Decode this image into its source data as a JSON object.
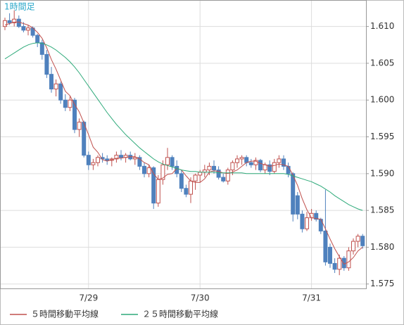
{
  "chart_data": {
    "type": "candlestick",
    "title": "1時間足",
    "categories": [
      null,
      null,
      null,
      null,
      null,
      null,
      null,
      null,
      null,
      null,
      null,
      null,
      null,
      null,
      null,
      null,
      null,
      null,
      "7/29",
      null,
      null,
      null,
      null,
      null,
      null,
      null,
      null,
      null,
      null,
      null,
      null,
      null,
      null,
      null,
      null,
      null,
      null,
      null,
      null,
      null,
      null,
      null,
      "7/30",
      null,
      null,
      null,
      null,
      null,
      null,
      null,
      null,
      null,
      null,
      null,
      null,
      null,
      null,
      null,
      null,
      null,
      null,
      null,
      null,
      null,
      null,
      null,
      "7/31",
      null,
      null,
      null,
      null,
      null,
      null,
      null,
      null,
      null,
      null,
      null
    ],
    "open": [
      1.61,
      1.6108,
      1.6105,
      1.611,
      1.61,
      1.6095,
      1.6098,
      1.6088,
      1.6078,
      1.6062,
      1.6035,
      1.6015,
      1.6022,
      1.6,
      1.599,
      1.6,
      1.596,
      1.597,
      1.5925,
      1.5912,
      1.5915,
      1.5922,
      1.592,
      1.5918,
      1.592,
      1.5925,
      1.5922,
      1.5925,
      1.592,
      1.5922,
      1.591,
      1.59,
      1.5908,
      1.586,
      1.5892,
      1.5912,
      1.5922,
      1.591,
      1.59,
      1.588,
      1.5872,
      1.589,
      1.5898,
      1.5902,
      1.5905,
      1.591,
      1.5905,
      1.5895,
      1.589,
      1.5905,
      1.5915,
      1.592,
      1.5922,
      1.5915,
      1.5912,
      1.5918,
      1.5905,
      1.5912,
      1.5903,
      1.5915,
      1.592,
      1.591,
      1.59,
      1.587,
      1.5845,
      1.5825,
      1.584,
      1.5846,
      1.5838,
      1.5822,
      1.58,
      1.5778,
      1.577,
      1.5785,
      1.5772,
      1.5795,
      1.5808,
      1.5815
    ],
    "high": [
      1.6112,
      1.6118,
      1.6122,
      1.6115,
      1.6106,
      1.6102,
      1.61,
      1.609,
      1.6082,
      1.6068,
      1.6045,
      1.6028,
      1.6025,
      1.6008,
      1.6005,
      1.6003,
      1.5975,
      1.5972,
      1.593,
      1.592,
      1.5925,
      1.5928,
      1.5925,
      1.5922,
      1.593,
      1.5932,
      1.5928,
      1.593,
      1.5928,
      1.5925,
      1.5915,
      1.5912,
      1.591,
      1.5898,
      1.5918,
      1.5935,
      1.5925,
      1.5918,
      1.5905,
      1.5885,
      1.5895,
      1.59,
      1.5905,
      1.5912,
      1.5915,
      1.5918,
      1.591,
      1.59,
      1.5908,
      1.5918,
      1.5925,
      1.5925,
      1.5925,
      1.592,
      1.5922,
      1.592,
      1.5915,
      1.5918,
      1.592,
      1.5925,
      1.5925,
      1.5915,
      1.5902,
      1.5875,
      1.585,
      1.5848,
      1.5852,
      1.585,
      1.584,
      1.5878,
      1.5805,
      1.5785,
      1.579,
      1.5788,
      1.58,
      1.5812,
      1.5818,
      1.5818
    ],
    "low": [
      1.6095,
      1.6102,
      1.61,
      1.6098,
      1.6092,
      1.6088,
      1.6085,
      1.6072,
      1.6055,
      1.603,
      1.601,
      1.6005,
      1.5995,
      1.5985,
      1.5985,
      1.5955,
      1.595,
      1.5922,
      1.5905,
      1.5905,
      1.591,
      1.5915,
      1.5912,
      1.591,
      1.5915,
      1.5918,
      1.5915,
      1.5918,
      1.5912,
      1.5905,
      1.5895,
      1.5895,
      1.5852,
      1.5855,
      1.5885,
      1.5905,
      1.5905,
      1.5895,
      1.5875,
      1.5868,
      1.586,
      1.5878,
      1.5888,
      1.5895,
      1.5898,
      1.59,
      1.5892,
      1.5888,
      1.5885,
      1.5898,
      1.5908,
      1.5912,
      1.591,
      1.5908,
      1.5905,
      1.5902,
      1.59,
      1.5898,
      1.59,
      1.5908,
      1.5905,
      1.5895,
      1.5835,
      1.5838,
      1.582,
      1.5822,
      1.5836,
      1.5835,
      1.5818,
      1.5775,
      1.5772,
      1.5765,
      1.5762,
      1.5768,
      1.5768,
      1.579,
      1.58,
      1.5798
    ],
    "close": [
      1.6108,
      1.6105,
      1.611,
      1.61,
      1.6095,
      1.6098,
      1.6088,
      1.6078,
      1.6062,
      1.6035,
      1.6015,
      1.6022,
      1.6,
      1.599,
      1.6,
      1.596,
      1.597,
      1.5925,
      1.5912,
      1.5915,
      1.5922,
      1.592,
      1.5918,
      1.592,
      1.5925,
      1.5922,
      1.5925,
      1.592,
      1.5922,
      1.591,
      1.59,
      1.5908,
      1.586,
      1.5892,
      1.5912,
      1.5922,
      1.591,
      1.59,
      1.588,
      1.5872,
      1.589,
      1.5898,
      1.5902,
      1.5905,
      1.591,
      1.5905,
      1.5895,
      1.589,
      1.5905,
      1.5915,
      1.592,
      1.5922,
      1.5915,
      1.5912,
      1.5918,
      1.5905,
      1.5912,
      1.5903,
      1.5915,
      1.592,
      1.591,
      1.59,
      1.5845,
      1.5845,
      1.5825,
      1.584,
      1.5846,
      1.5838,
      1.5822,
      1.578,
      1.5778,
      1.577,
      1.5785,
      1.5772,
      1.5795,
      1.5808,
      1.5815,
      1.5802
    ],
    "up_color": "#c0504d",
    "down_color": "#4f81bd",
    "series": [
      {
        "name": "５時間移動平均線",
        "color": "#c0504d",
        "values": [
          1.6102,
          1.6104,
          1.6106,
          1.6106,
          1.6104,
          1.6102,
          1.6098,
          1.6092,
          1.6084,
          1.6071,
          1.6055,
          1.6042,
          1.6027,
          1.6012,
          1.6006,
          1.5994,
          1.5984,
          1.5969,
          1.5953,
          1.5936,
          1.5929,
          1.5919,
          1.5917,
          1.5919,
          1.5921,
          1.5921,
          1.5922,
          1.5923,
          1.5923,
          1.592,
          1.5915,
          1.5912,
          1.59,
          1.5892,
          1.5894,
          1.5899,
          1.59,
          1.5907,
          1.5905,
          1.5897,
          1.589,
          1.5888,
          1.5888,
          1.5893,
          1.5902,
          1.5904,
          1.5903,
          1.5901,
          1.59,
          1.5902,
          1.5905,
          1.591,
          1.5915,
          1.5917,
          1.5917,
          1.5914,
          1.5912,
          1.591,
          1.5911,
          1.5913,
          1.5912,
          1.591,
          1.5898,
          1.5884,
          1.5866,
          1.5851,
          1.584,
          1.5839,
          1.5838,
          1.5825,
          1.5811,
          1.5798,
          1.5787,
          1.5777,
          1.578,
          1.5786,
          1.5795,
          1.58
        ]
      },
      {
        "name": "２５時間移動平均線",
        "color": "#2eaa7a",
        "values": [
          1.6056,
          1.606,
          1.6064,
          1.6068,
          1.6072,
          1.6075,
          1.6077,
          1.6078,
          1.6077,
          1.6075,
          1.6072,
          1.6068,
          1.6063,
          1.6058,
          1.6052,
          1.6045,
          1.6037,
          1.6028,
          1.6019,
          1.601,
          1.6001,
          1.5992,
          1.5983,
          1.5975,
          1.5967,
          1.596,
          1.5953,
          1.5947,
          1.5941,
          1.5935,
          1.593,
          1.5925,
          1.592,
          1.5916,
          1.5913,
          1.5911,
          1.5909,
          1.5907,
          1.5905,
          1.5904,
          1.5903,
          1.5903,
          1.5902,
          1.5902,
          1.5902,
          1.5902,
          1.5901,
          1.5901,
          1.5901,
          1.5901,
          1.5901,
          1.5901,
          1.59,
          1.59,
          1.59,
          1.59,
          1.59,
          1.59,
          1.59,
          1.59,
          1.59,
          1.5899,
          1.5897,
          1.5895,
          1.5893,
          1.5891,
          1.5889,
          1.5886,
          1.5883,
          1.5879,
          1.5875,
          1.587,
          1.5866,
          1.5862,
          1.5858,
          1.5855,
          1.5852,
          1.585
        ]
      }
    ],
    "ylim": [
      1.5744,
      1.6136
    ],
    "yticks": [
      1.575,
      {
        "value": 1.58,
        "label": "1.580"
      },
      1.585,
      {
        "value": 1.59,
        "label": "1.590"
      },
      1.595,
      {
        "value": 1.6,
        "label": "1.600"
      },
      1.605,
      {
        "value": 1.61,
        "label": "1.610"
      }
    ],
    "grid": true
  }
}
